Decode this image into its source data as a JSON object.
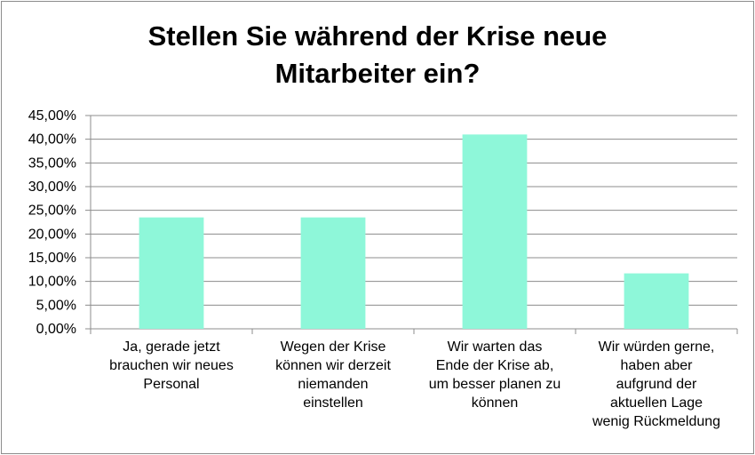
{
  "chart_data": {
    "type": "bar",
    "title_lines": [
      "Stellen Sie während der Krise neue",
      "Mitarbeiter ein?"
    ],
    "categories": [
      [
        "Ja, gerade jetzt",
        "brauchen wir neues",
        "Personal"
      ],
      [
        "Wegen der Krise",
        "können wir derzeit",
        "niemanden",
        "einstellen"
      ],
      [
        "Wir warten das",
        "Ende der Krise ab,",
        "um besser planen zu",
        "können"
      ],
      [
        "Wir würden gerne,",
        "haben aber",
        "aufgrund der",
        "aktuellen Lage",
        "wenig Rückmeldung"
      ]
    ],
    "values": [
      23.5,
      23.5,
      41.0,
      11.7
    ],
    "ylim": [
      0,
      45
    ],
    "ytick_step": 5,
    "ytick_labels": [
      "0,00%",
      "5,00%",
      "10,00%",
      "15,00%",
      "20,00%",
      "25,00%",
      "30,00%",
      "35,00%",
      "40,00%",
      "45,00%"
    ],
    "grid": true,
    "legend": "none",
    "colors": {
      "bar": "#8ef7d9",
      "grid": "#8c8c8c",
      "axis": "#8c8c8c"
    }
  }
}
